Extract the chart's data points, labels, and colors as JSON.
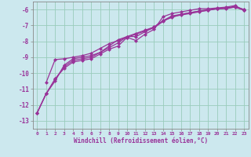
{
  "xlabel": "Windchill (Refroidissement éolien,°C)",
  "background_color": "#cce8ee",
  "grid_color": "#99ccbb",
  "line_color": "#993399",
  "xlim": [
    -0.5,
    23.5
  ],
  "ylim": [
    -13.5,
    -5.5
  ],
  "yticks": [
    -13,
    -12,
    -11,
    -10,
    -9,
    -8,
    -7,
    -6
  ],
  "xticks": [
    0,
    1,
    2,
    3,
    4,
    5,
    6,
    7,
    8,
    9,
    10,
    11,
    12,
    13,
    14,
    15,
    16,
    17,
    18,
    19,
    20,
    21,
    22,
    23
  ],
  "line1_x": [
    0,
    1,
    2,
    3,
    4,
    5,
    6,
    7,
    8,
    9,
    10,
    11,
    12,
    13,
    14,
    15,
    16,
    17,
    18,
    19,
    20,
    21,
    22,
    23
  ],
  "line1_y": [
    -12.5,
    -11.3,
    -10.5,
    -9.5,
    -9.1,
    -9.0,
    -8.9,
    -8.7,
    -8.4,
    -8.1,
    -7.7,
    -7.7,
    -7.4,
    -7.1,
    -6.7,
    -6.5,
    -6.3,
    -6.2,
    -6.1,
    -6.05,
    -5.95,
    -5.95,
    -5.85,
    -6.05
  ],
  "line2_x": [
    0,
    1,
    2,
    3,
    4,
    5,
    6,
    7,
    8,
    9,
    10,
    11,
    12,
    13,
    14,
    15,
    16,
    17,
    18,
    19,
    20,
    21,
    22,
    23
  ],
  "line2_y": [
    -12.5,
    -11.3,
    -10.4,
    -9.6,
    -9.2,
    -9.1,
    -9.0,
    -8.7,
    -8.3,
    -7.9,
    -7.7,
    -7.5,
    -7.3,
    -7.1,
    -6.7,
    -6.4,
    -6.3,
    -6.2,
    -6.1,
    -6.0,
    -5.95,
    -5.9,
    -5.85,
    -6.0
  ],
  "line3_x": [
    1,
    2,
    3,
    4,
    5,
    6,
    7,
    8,
    9,
    10,
    11,
    12,
    13,
    14,
    15,
    16,
    17,
    18,
    19,
    20,
    21,
    22,
    23
  ],
  "line3_y": [
    -10.6,
    -9.15,
    -9.1,
    -9.0,
    -8.9,
    -8.75,
    -8.45,
    -8.15,
    -7.95,
    -7.75,
    -7.95,
    -7.55,
    -7.25,
    -6.45,
    -6.25,
    -6.15,
    -6.05,
    -5.95,
    -5.95,
    -5.9,
    -5.85,
    -5.75,
    -6.05
  ],
  "line4_x": [
    0,
    1,
    2,
    3,
    4,
    5,
    6,
    7,
    8,
    9,
    10,
    11,
    12,
    13,
    14,
    15,
    16,
    17,
    18,
    19,
    20,
    21,
    22,
    23
  ],
  "line4_y": [
    -12.5,
    -11.3,
    -10.35,
    -9.7,
    -9.3,
    -9.2,
    -9.1,
    -8.8,
    -8.5,
    -8.3,
    -7.75,
    -7.55,
    -7.35,
    -7.15,
    -6.75,
    -6.45,
    -6.35,
    -6.25,
    -6.15,
    -6.05,
    -5.95,
    -5.9,
    -5.8,
    -6.0
  ]
}
